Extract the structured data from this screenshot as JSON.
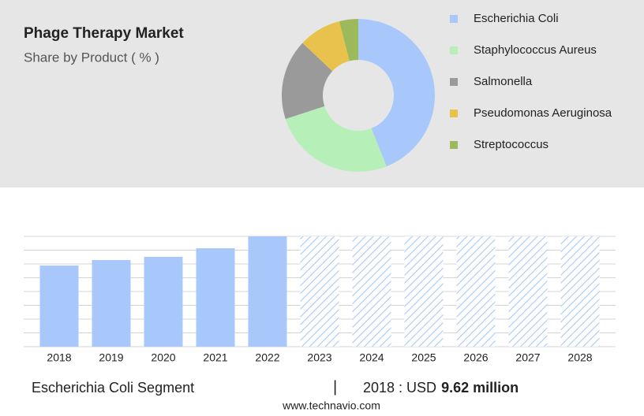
{
  "chart_data": [
    {
      "type": "pie",
      "title": "Phage Therapy Market",
      "subtitle": "Share by Product ( % )",
      "categories": [
        "Escherichia Coli",
        "Staphylococcus Aureus",
        "Salmonella",
        "Pseudomonas Aeruginosa",
        "Streptococcus"
      ],
      "values": [
        44,
        26,
        17,
        9,
        4
      ],
      "colors": [
        "#a8c8fb",
        "#b6f0b8",
        "#9a9a9a",
        "#e8c24c",
        "#9cb95b"
      ]
    },
    {
      "type": "bar",
      "categories": [
        "2018",
        "2019",
        "2020",
        "2021",
        "2022",
        "2023",
        "2024",
        "2025",
        "2026",
        "2027",
        "2028"
      ],
      "values": [
        9.62,
        10.27,
        10.65,
        11.67,
        13.08,
        null,
        null,
        null,
        null,
        null,
        null
      ],
      "color": "#a8c8fb",
      "ylim": [
        0,
        13.08
      ],
      "grid": true
    }
  ],
  "footer": {
    "segment": "Escherichia Coli Segment",
    "separator": "|",
    "label": "2018 : USD",
    "value": "9.62 million"
  },
  "source": "www.technavio.com"
}
